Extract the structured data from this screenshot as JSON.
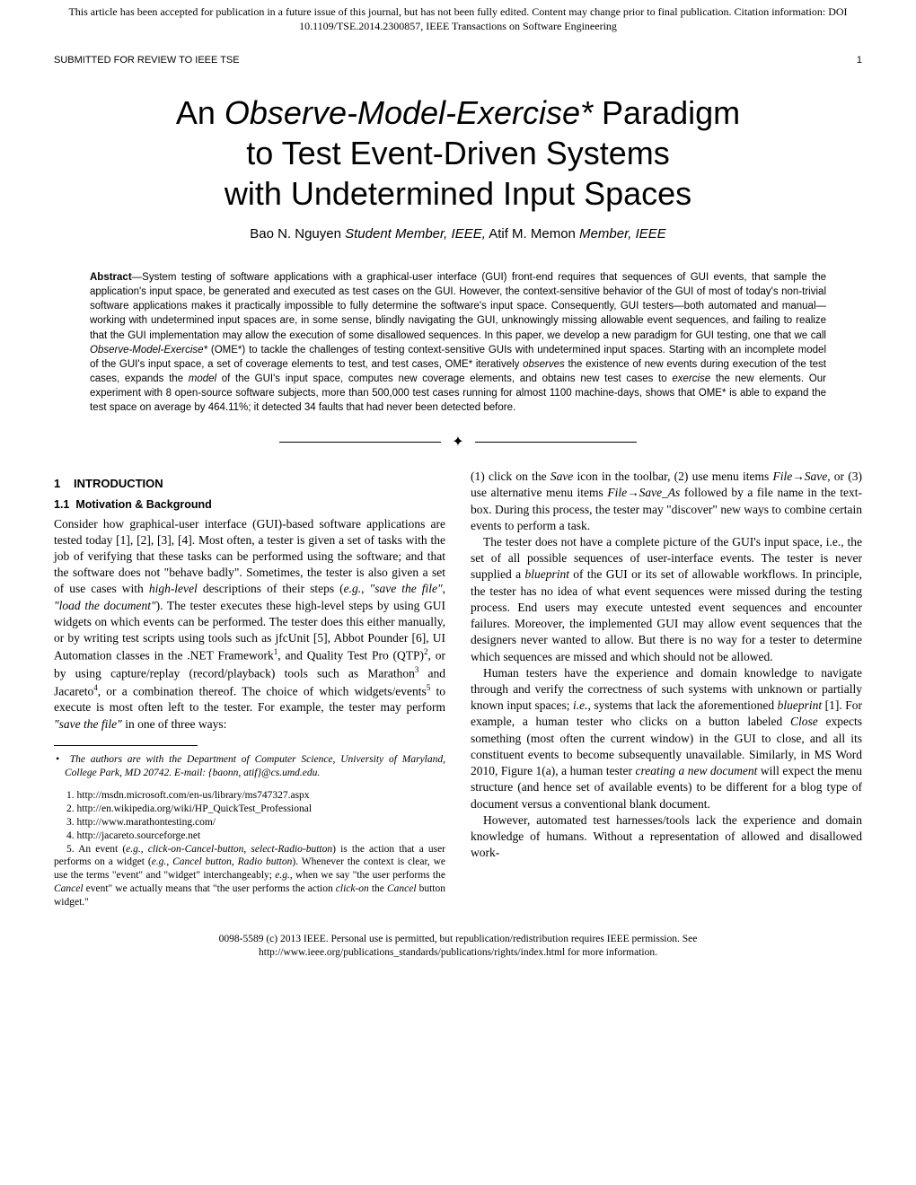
{
  "header": {
    "notice_line1": "This article has been accepted for publication in a future issue of this journal, but has not been fully edited. Content may change prior to final publication. Citation information: DOI",
    "notice_line2": "10.1109/TSE.2014.2300857, IEEE Transactions on Software Engineering",
    "submitted": "SUBMITTED FOR REVIEW TO IEEE TSE",
    "page_num": "1"
  },
  "title": {
    "l1a": "An ",
    "l1b": "Observe-Model-Exercise*",
    "l1c": " Paradigm",
    "l2": "to Test Event-Driven Systems",
    "l3": "with Undetermined Input Spaces"
  },
  "authors": {
    "a1": "Bao N. Nguyen ",
    "r1": "Student Member, IEEE,",
    "a2": " Atif M. Memon ",
    "r2": "Member, IEEE"
  },
  "abstract": {
    "label": "Abstract",
    "dash": "—",
    "p1": "System testing of software applications with a graphical-user interface (GUI) front-end requires that sequences of GUI events, that sample the application's input space, be generated and executed as test cases on the GUI. However, the context-sensitive behavior of the GUI of most of today's non-trivial software applications makes it practically impossible to fully determine the software's input space. Consequently, GUI testers—both automated and manual—working with undetermined input spaces are, in some sense, blindly navigating the GUI, unknowingly missing allowable event sequences, and failing to realize that the GUI implementation may allow the execution of some disallowed sequences. In this paper, we develop a new paradigm for GUI testing, one that we call ",
    "it1": "Observe-Model-Exercise*",
    "p2": " (OME*) to tackle the challenges of testing context-sensitive GUIs with undetermined input spaces. Starting with an incomplete model of the GUI's input space, a set of coverage elements to test, and test cases, OME* iteratively ",
    "it2": "observes",
    "p3": " the existence of new events during execution of the test cases, expands the ",
    "it3": "model",
    "p4": " of the GUI's input space, computes new coverage elements, and obtains new test cases to ",
    "it4": "exercise",
    "p5": " the new elements. Our experiment with 8 open-source software subjects, more than 500,000 test cases running for almost 1100 machine-days, shows that OME* is able to expand the test space on average by 464.11%; it detected 34 faults that had never been detected before."
  },
  "section1": {
    "num": "1",
    "title": "INTRODUCTION"
  },
  "subsection11": {
    "num": "1.1",
    "title": "Motivation & Background"
  },
  "body": {
    "c1p1a": "Consider how graphical-user interface (GUI)-based software applications are tested today [1], [2], [3], [4]. Most often, a tester is given a set of tasks with the job of verifying that these tasks can be performed using the software; and that the software does not \"behave badly\". Sometimes, the tester is also given a set of use cases with ",
    "c1p1b": "high-level",
    "c1p1c": " descriptions of their steps (",
    "c1p1d": "e.g.",
    "c1p1e": ", ",
    "c1p1f": "\"save the file\"",
    "c1p1g": ", ",
    "c1p1h": "\"load the document\"",
    "c1p1i": "). The tester executes these high-level steps by using GUI widgets on which events can be performed. The tester does this either manually, or by writing test scripts using tools such as jfcUnit [5], Abbot Pounder [6], UI Automation classes in the .NET Framework",
    "c1p1j": ", and Quality Test Pro (QTP)",
    "c1p1k": ", or by using capture/replay (record/playback) tools such as Marathon",
    "c1p1l": " and Jacareto",
    "c1p1m": ", or a combination thereof. The choice of which widgets/events",
    "c1p1n": " to execute is most often left to the tester. For example, the tester may perform ",
    "c1p1o": "\"save the file\"",
    "c1p1p": " in one of three ways:",
    "c2p1a": "(1) click on the ",
    "c2p1b": "Save",
    "c2p1c": " icon in the toolbar, (2) use menu items ",
    "c2p1d": "File",
    "arrow": "→",
    "c2p1e": "Save",
    "c2p1f": ", or (3) use alternative menu items ",
    "c2p1g": "File",
    "c2p1h": "Save_As",
    "c2p1i": " followed by a file name in the text-box. During this process, the tester may \"discover\" new ways to combine certain events to perform a task.",
    "c2p2a": "The tester does not have a complete picture of the GUI's input space, i.e., the set of all possible sequences of user-interface events. The tester is never supplied a ",
    "c2p2b": "blueprint",
    "c2p2c": " of the GUI or its set of allowable workflows. In principle, the tester has no idea of what event sequences were missed during the testing process. End users may execute untested event sequences and encounter failures. Moreover, the implemented GUI may allow event sequences that the designers never wanted to allow. But there is no way for a tester to determine which sequences are missed and which should not be allowed.",
    "c2p3a": "Human testers have the experience and domain knowledge to navigate through and verify the correctness of such systems with unknown or partially known input spaces; ",
    "c2p3b": "i.e.",
    "c2p3c": ", systems that lack the aforementioned ",
    "c2p3d": "blueprint",
    "c2p3e": " [1]. For example, a human tester who clicks on a button labeled ",
    "c2p3f": "Close",
    "c2p3g": " expects something (most often the current window) in the GUI to close, and all its constituent events to become subsequently unavailable. Similarly, in MS Word 2010, Figure 1(a), a human tester ",
    "c2p3h": "creating a new document",
    "c2p3i": " will expect the menu structure (and hence set of available events) to be different for a blog type of document versus a conventional blank document.",
    "c2p4": "However, automated test harnesses/tools lack the experience and domain knowledge of humans. Without a representation of allowed and disallowed work-"
  },
  "affiliation": {
    "bullet": "•",
    "text": "The authors are with the Department of Computer Science, University of Maryland, College Park, MD 20742. E-mail: {baonn, atif}@cs.umd.edu."
  },
  "footnotes": {
    "f1": "1. http://msdn.microsoft.com/en-us/library/ms747327.aspx",
    "f2": "2. http://en.wikipedia.org/wiki/HP_QuickTest_Professional",
    "f3": "3. http://www.marathontesting.com/",
    "f4": "4. http://jacareto.sourceforge.net",
    "f5a": "5. An event (",
    "f5b": "e.g.",
    "f5c": ", ",
    "f5d": "click-on-Cancel-button",
    "f5e": ", ",
    "f5f": "select-Radio-button",
    "f5g": ") is the action that a user performs on a widget (",
    "f5h": "e.g.",
    "f5i": ", ",
    "f5j": "Cancel button",
    "f5k": ", ",
    "f5l": "Radio button",
    "f5m": "). Whenever the context is clear, we use the terms \"event\" and \"widget\" interchangeably; ",
    "f5n": "e.g.",
    "f5o": ", when we say \"the user performs the ",
    "f5p": "Cancel",
    "f5q": " event\" we actually means that \"the user performs the action ",
    "f5r": "click-on",
    "f5s": " the ",
    "f5t": "Cancel",
    "f5u": " button widget.\""
  },
  "footer": {
    "l1": "0098-5589 (c) 2013 IEEE. Personal use is permitted, but republication/redistribution requires IEEE permission. See",
    "l2": "http://www.ieee.org/publications_standards/publications/rights/index.html for more information."
  }
}
